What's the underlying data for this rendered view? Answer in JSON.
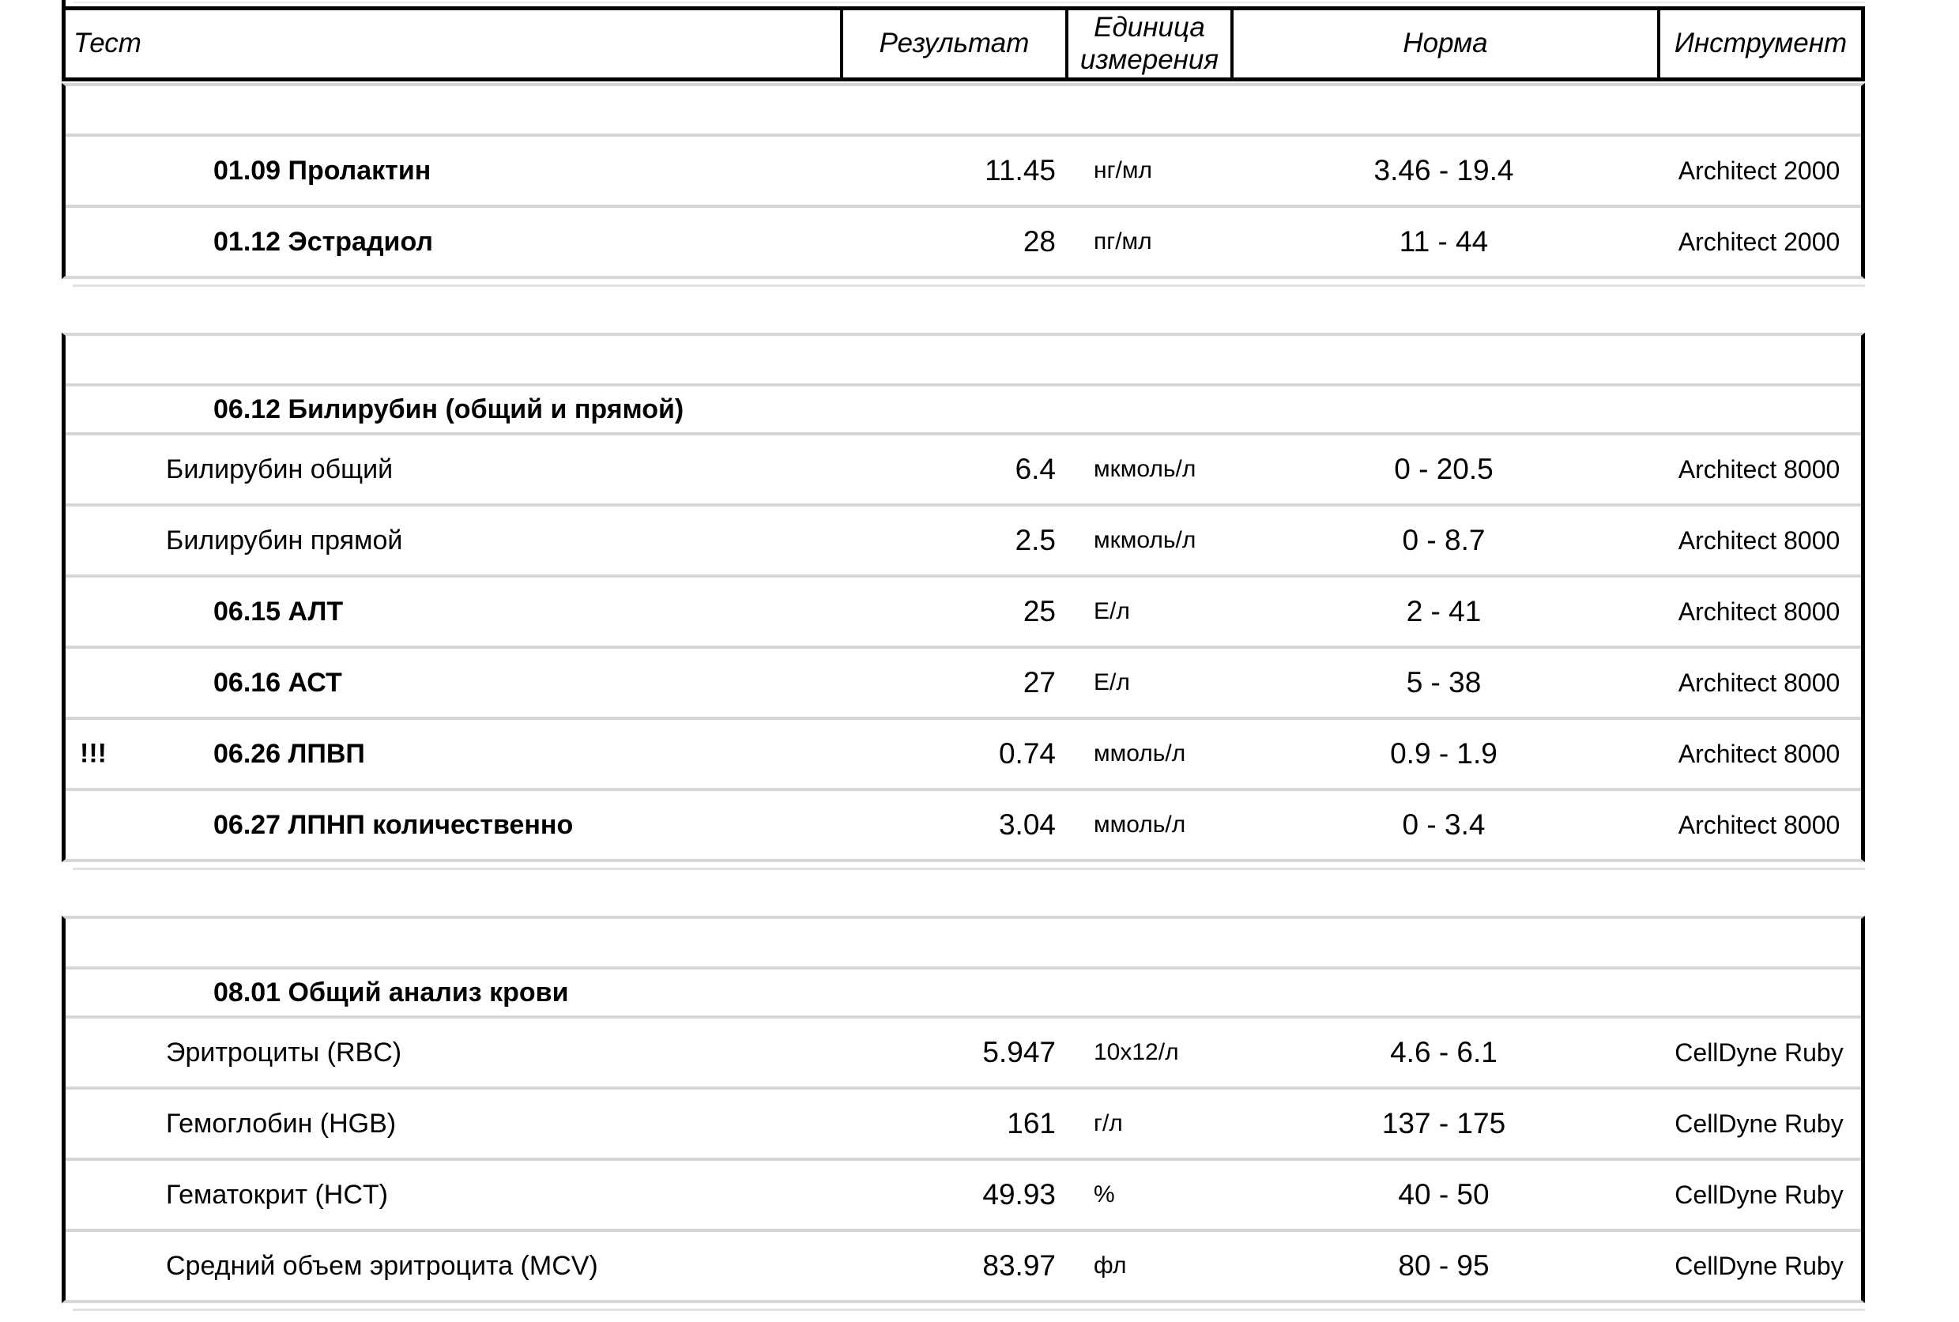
{
  "header": {
    "col_test": "Тест",
    "col_result": "Результат",
    "col_unit": "Единица\nизмерения",
    "col_norm": "Норма",
    "col_instrument": "Инструмент"
  },
  "sections": [
    {
      "rows": [
        {
          "flag": "",
          "test": "01.09 Пролактин",
          "result": "11.45",
          "unit": "нг/мл",
          "norm": "3.46 - 19.4",
          "instrument": "Architect 2000"
        },
        {
          "flag": "",
          "test": "01.12 Эстрадиол",
          "result": "28",
          "unit": "пг/мл",
          "norm": "11 - 44",
          "instrument": "Architect 2000"
        }
      ]
    },
    {
      "group_label": "06.12 Билирубин (общий и прямой)",
      "rows": [
        {
          "flag": "",
          "test": "Билирубин общий",
          "result": "6.4",
          "unit": "мкмоль/л",
          "norm": "0 - 20.5",
          "instrument": "Architect 8000"
        },
        {
          "flag": "",
          "test": "Билирубин прямой",
          "result": "2.5",
          "unit": "мкмоль/л",
          "norm": "0 - 8.7",
          "instrument": "Architect 8000"
        },
        {
          "flag": "",
          "test": "06.15 АЛТ",
          "result": "25",
          "unit": "Е/л",
          "norm": "2 - 41",
          "instrument": "Architect 8000"
        },
        {
          "flag": "",
          "test": "06.16 АСТ",
          "result": "27",
          "unit": "Е/л",
          "norm": "5 - 38",
          "instrument": "Architect 8000"
        },
        {
          "flag": "!!!",
          "test": "06.26 ЛПВП",
          "result": "0.74",
          "unit": "ммоль/л",
          "norm": "0.9 - 1.9",
          "instrument": "Architect 8000"
        },
        {
          "flag": "",
          "test": "06.27 ЛПНП количественно",
          "result": "3.04",
          "unit": "ммоль/л",
          "norm": "0 - 3.4",
          "instrument": "Architect 8000"
        }
      ]
    },
    {
      "group_label": "08.01 Общий анализ крови",
      "rows": [
        {
          "flag": "",
          "test": "Эритроциты (RBC)",
          "result": "5.947",
          "unit": "10х12/л",
          "norm": "4.6 - 6.1",
          "instrument": "CellDyne Ruby"
        },
        {
          "flag": "",
          "test": "Гемоглобин (HGB)",
          "result": "161",
          "unit": "г/л",
          "norm": "137 - 175",
          "instrument": "CellDyne Ruby"
        },
        {
          "flag": "",
          "test": "Гематокрит (HCT)",
          "result": "49.93",
          "unit": "%",
          "norm": "40 - 50",
          "instrument": "CellDyne Ruby"
        },
        {
          "flag": "",
          "test": "Средний объем эритроцита (MCV)",
          "result": "83.97",
          "unit": "фл",
          "norm": "80 - 95",
          "instrument": "CellDyne Ruby"
        }
      ]
    }
  ]
}
